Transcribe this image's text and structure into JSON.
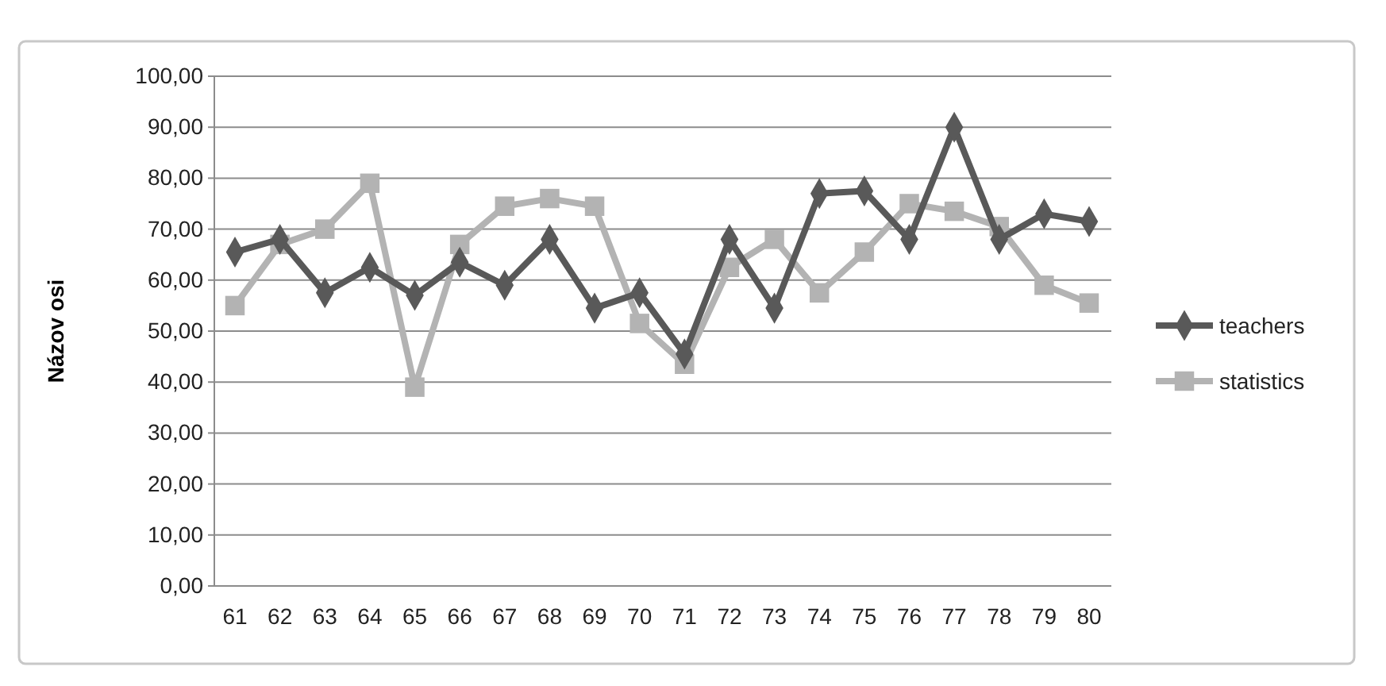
{
  "chart_data": {
    "type": "line",
    "ylabel": "Názov osi",
    "categories": [
      "61",
      "62",
      "63",
      "64",
      "65",
      "66",
      "67",
      "68",
      "69",
      "70",
      "71",
      "72",
      "73",
      "74",
      "75",
      "76",
      "77",
      "78",
      "79",
      "80"
    ],
    "series": [
      {
        "name": "teachers",
        "color": "#595959",
        "marker": "diamond",
        "values": [
          65.5,
          68,
          57.5,
          62.5,
          57,
          63.5,
          59,
          68,
          54.5,
          57.5,
          45.5,
          68,
          54.5,
          77,
          77.5,
          68,
          90,
          68,
          73,
          71.5
        ]
      },
      {
        "name": "statistics",
        "color": "#b3b3b3",
        "marker": "square",
        "values": [
          55,
          67,
          70,
          79,
          39,
          67,
          74.5,
          76,
          74.5,
          51.5,
          43.5,
          62.5,
          68,
          57.5,
          65.5,
          75,
          73.5,
          70.5,
          59,
          55.5
        ]
      }
    ],
    "ylim": [
      0,
      100
    ],
    "yticks": [
      {
        "value": 0,
        "label": "0,00"
      },
      {
        "value": 10,
        "label": "10,00"
      },
      {
        "value": 20,
        "label": "20,00"
      },
      {
        "value": 30,
        "label": "30,00"
      },
      {
        "value": 40,
        "label": "40,00"
      },
      {
        "value": 50,
        "label": "50,00"
      },
      {
        "value": 60,
        "label": "60,00"
      },
      {
        "value": 70,
        "label": "70,00"
      },
      {
        "value": 80,
        "label": "80,00"
      },
      {
        "value": 90,
        "label": "90,00"
      },
      {
        "value": 100,
        "label": "100,00"
      }
    ],
    "grid": "y",
    "legend": "right",
    "line_style": "solid"
  }
}
